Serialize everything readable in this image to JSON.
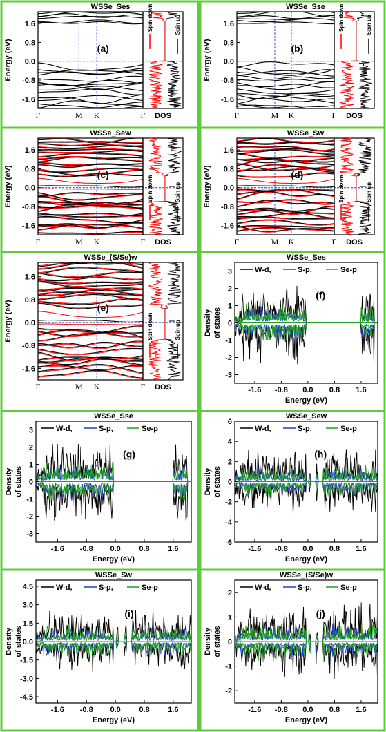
{
  "colors": {
    "frame": "#5ccc3a",
    "band_black": "#000000",
    "band_red": "#ff0000",
    "fermi": "#1c3fc4",
    "wd": "#000000",
    "sp": "#1f3fcc",
    "sep": "#1fa01f"
  },
  "band_panels": [
    {
      "title": "WSSe_Ses",
      "label": "(a)",
      "ylabel": "Energy (eV)",
      "yticks": [
        "1.6",
        "0.8",
        "0.0",
        "-0.8",
        "-1.6"
      ],
      "kpoints": [
        "Γ",
        "M",
        "K",
        "Γ"
      ],
      "dos_label": "DOS",
      "spin_down": "Spin down",
      "spin_up": "Spin up",
      "spin_polarized": false,
      "gap_states": "none"
    },
    {
      "title": "WSSe_Sse",
      "label": "(b)",
      "ylabel": "Energy (eV)",
      "yticks": [
        "1.6",
        "0.8",
        "0.0",
        "-0.8",
        "-1.6"
      ],
      "kpoints": [
        "Γ",
        "M",
        "K",
        "Γ"
      ],
      "dos_label": "DOS",
      "spin_down": "Spin down",
      "spin_up": "Spin up",
      "spin_polarized": false,
      "gap_states": "none"
    },
    {
      "title": "WSSe_Sew",
      "label": "(c)",
      "ylabel": "Energy (eV)",
      "yticks": [
        "1.6",
        "0.8",
        "0.0",
        "-0.8",
        "-1.6"
      ],
      "kpoints": [
        "Γ",
        "M",
        "K",
        "Γ"
      ],
      "dos_label": "DOS",
      "spin_down": "Spin down",
      "spin_up": "Spin up",
      "spin_polarized": true,
      "gap_states": "fermi"
    },
    {
      "title": "WSSe_Sw",
      "label": "(d)",
      "ylabel": "Energy (eV)",
      "yticks": [
        "1.6",
        "0.8",
        "0.0",
        "-0.8",
        "-1.6"
      ],
      "kpoints": [
        "Γ",
        "M",
        "K",
        "Γ"
      ],
      "dos_label": "DOS",
      "spin_down": "Spin down",
      "spin_up": "Spin up",
      "spin_polarized": true,
      "gap_states": "fermi"
    },
    {
      "title": "WSSe_(S/Se)w",
      "label": "(e)",
      "ylabel": "Energy (eV)",
      "yticks": [
        "1.6",
        "0.8",
        "0.0",
        "-0.8",
        "-1.6"
      ],
      "kpoints": [
        "Γ",
        "M",
        "K",
        "Γ"
      ],
      "dos_label": "DOS",
      "spin_down": "Spin down",
      "spin_up": "Spin up",
      "spin_polarized": true,
      "gap_states": "fermi"
    }
  ],
  "pdos_panels": [
    {
      "title": "WSSe_Ses",
      "label": "(f)",
      "ylabel": [
        "Density",
        "of states"
      ],
      "xlabel": "Energy (eV)",
      "ylim": [
        -3.5,
        3.5
      ],
      "yticks": [
        3,
        2,
        1,
        0,
        -1,
        -2,
        -3
      ],
      "xticks": [
        "-1.6",
        "-0.8",
        "0.0",
        "0.8",
        "1.6"
      ],
      "legend": [
        "W-d,",
        "S-p,",
        "Se-p"
      ],
      "amp": 1.8,
      "mid": false
    },
    {
      "title": "WSSe_Sse",
      "label": "(g)",
      "ylabel": [
        "Density",
        "of states"
      ],
      "xlabel": "Energy (eV)",
      "ylim": [
        -3.5,
        3.5
      ],
      "yticks": [
        3,
        2,
        1,
        0,
        -1,
        -2,
        -3
      ],
      "xticks": [
        "-1.6",
        "-0.8",
        "0.0",
        "0.8",
        "1.6"
      ],
      "legend": [
        "W-d,",
        "S-p,",
        "Se-p"
      ],
      "amp": 1.8,
      "mid": false
    },
    {
      "title": "WSSe_Sew",
      "label": "(h)",
      "ylabel": [
        "Density",
        "of states"
      ],
      "xlabel": "Energy (eV)",
      "ylim": [
        -6,
        6
      ],
      "yticks": [
        6,
        4,
        2,
        0,
        -2,
        -4,
        -6
      ],
      "xticks": [
        "-1.6",
        "-0.8",
        "0.0",
        "0.8",
        "1.6"
      ],
      "legend": [
        "W-d,",
        "S-p,",
        "Se-p"
      ],
      "amp": 2.5,
      "mid": true
    },
    {
      "title": "WSSe_Sw",
      "label": "(i)",
      "ylabel": [
        "Density",
        "of states"
      ],
      "xlabel": "Energy (eV)",
      "ylim": [
        -5,
        5
      ],
      "yticks": [
        "4.5",
        "3.0",
        "1.5",
        "0.0",
        "-1.5",
        "-3.0",
        "-4.5"
      ],
      "ytickvals": [
        4.5,
        3,
        1.5,
        0,
        -1.5,
        -3,
        -4.5
      ],
      "xticks": [
        "-1.6",
        "-0.8",
        "0.0",
        "0.8",
        "1.6"
      ],
      "legend": [
        "W-d,",
        "S-p,",
        "Se-p"
      ],
      "amp": 2.0,
      "mid": true
    },
    {
      "title": "WSSe_(S/Se)w",
      "label": "(j)",
      "ylabel": [
        "Density",
        "of states"
      ],
      "xlabel": "Energy (eV)",
      "ylim": [
        -2.5,
        2.5
      ],
      "yticks": [
        2,
        1,
        0,
        -1,
        -2
      ],
      "xticks": [
        "-1.6",
        "-0.8",
        "0.0",
        "0.8",
        "1.6"
      ],
      "legend": [
        "W-d,",
        "S-p,",
        "Se-p"
      ],
      "amp": 1.2,
      "mid": true
    }
  ],
  "chart_data": [
    {
      "type": "line",
      "title": "WSSe_Ses",
      "panel": "(a)",
      "ylabel": "Energy (eV)",
      "ylim": [
        -2.0,
        2.1
      ],
      "x": [
        "Γ",
        "M",
        "K",
        "Γ"
      ],
      "fermi_level": 0.0,
      "dos": {
        "xlabel": "DOS",
        "legend": [
          "Spin down",
          "Spin up"
        ]
      }
    },
    {
      "type": "line",
      "title": "WSSe_Sse",
      "panel": "(b)",
      "ylabel": "Energy (eV)",
      "ylim": [
        -2.0,
        2.1
      ],
      "x": [
        "Γ",
        "M",
        "K",
        "Γ"
      ],
      "fermi_level": 0.0,
      "dos": {
        "xlabel": "DOS",
        "legend": [
          "Spin down",
          "Spin up"
        ]
      }
    },
    {
      "type": "line",
      "title": "WSSe_Sew",
      "panel": "(c)",
      "ylabel": "Energy (eV)",
      "ylim": [
        -2.0,
        2.1
      ],
      "x": [
        "Γ",
        "M",
        "K",
        "Γ"
      ],
      "fermi_level": 0.0,
      "dos": {
        "xlabel": "DOS",
        "legend": [
          "Spin down",
          "Spin up"
        ]
      }
    },
    {
      "type": "line",
      "title": "WSSe_Sw",
      "panel": "(d)",
      "ylabel": "Energy (eV)",
      "ylim": [
        -2.0,
        2.1
      ],
      "x": [
        "Γ",
        "M",
        "K",
        "Γ"
      ],
      "fermi_level": 0.0,
      "dos": {
        "xlabel": "DOS",
        "legend": [
          "Spin down",
          "Spin up"
        ]
      }
    },
    {
      "type": "line",
      "title": "WSSe_(S/Se)w",
      "panel": "(e)",
      "ylabel": "Energy (eV)",
      "ylim": [
        -2.0,
        2.1
      ],
      "x": [
        "Γ",
        "M",
        "K",
        "Γ"
      ],
      "fermi_level": 0.0,
      "dos": {
        "xlabel": "DOS",
        "legend": [
          "Spin down",
          "Spin up"
        ]
      }
    },
    {
      "type": "line",
      "title": "WSSe_Ses",
      "panel": "(f)",
      "xlabel": "Energy (eV)",
      "ylabel": "Density of states",
      "xlim": [
        -2.2,
        2.1
      ],
      "ylim": [
        -3.5,
        3.5
      ],
      "series": [
        {
          "name": "W-d,"
        },
        {
          "name": "S-p,"
        },
        {
          "name": "Se-p"
        }
      ]
    },
    {
      "type": "line",
      "title": "WSSe_Sse",
      "panel": "(g)",
      "xlabel": "Energy (eV)",
      "ylabel": "Density of states",
      "xlim": [
        -2.2,
        2.1
      ],
      "ylim": [
        -3.5,
        3.5
      ],
      "series": [
        {
          "name": "W-d,"
        },
        {
          "name": "S-p,"
        },
        {
          "name": "Se-p"
        }
      ]
    },
    {
      "type": "line",
      "title": "WSSe_Sew",
      "panel": "(h)",
      "xlabel": "Energy (eV)",
      "ylabel": "Density of states",
      "xlim": [
        -2.2,
        2.1
      ],
      "ylim": [
        -6,
        6
      ],
      "series": [
        {
          "name": "W-d,"
        },
        {
          "name": "S-p,"
        },
        {
          "name": "Se-p"
        }
      ]
    },
    {
      "type": "line",
      "title": "WSSe_Sw",
      "panel": "(i)",
      "xlabel": "Energy (eV)",
      "ylabel": "Density of states",
      "xlim": [
        -2.2,
        2.1
      ],
      "ylim": [
        -5,
        5
      ],
      "series": [
        {
          "name": "W-d,"
        },
        {
          "name": "S-p,"
        },
        {
          "name": "Se-p"
        }
      ]
    },
    {
      "type": "line",
      "title": "WSSe_(S/Se)w",
      "panel": "(j)",
      "xlabel": "Energy (eV)",
      "ylabel": "Density of states",
      "xlim": [
        -2.2,
        2.1
      ],
      "ylim": [
        -2.5,
        2.5
      ],
      "series": [
        {
          "name": "W-d,"
        },
        {
          "name": "S-p,"
        },
        {
          "name": "Se-p"
        }
      ]
    }
  ]
}
